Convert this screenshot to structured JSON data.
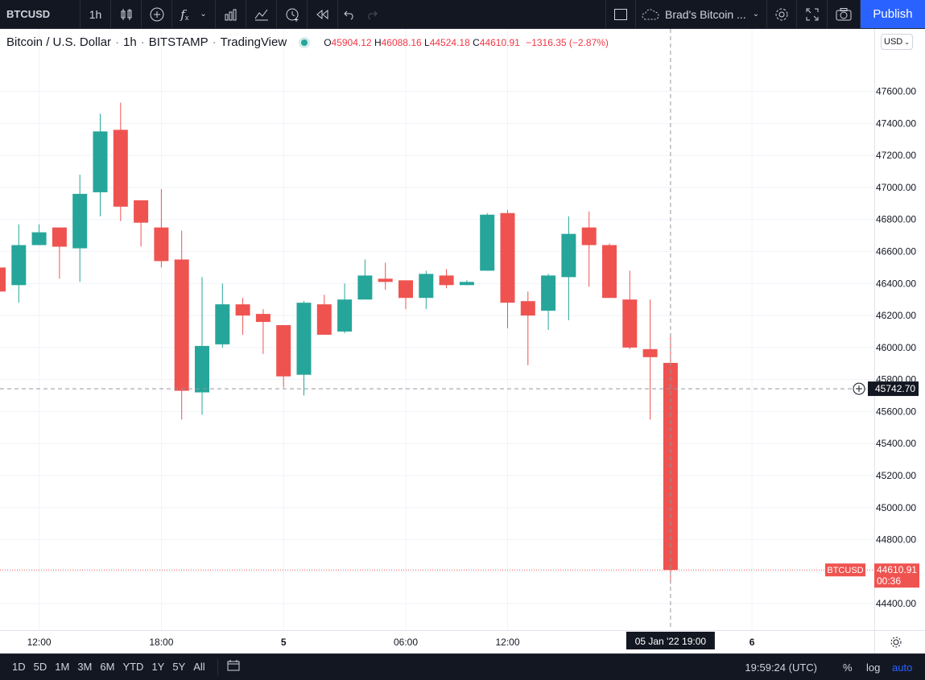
{
  "toolbar": {
    "symbol": "BTCUSD",
    "interval": "1h",
    "layout_name": "Brad's Bitcoin ...",
    "publish_label": "Publish",
    "icons": [
      "candle-style-icon",
      "add-compare-icon",
      "indicators-icon",
      "chevron-down-icon",
      "financials-icon",
      "templates-icon",
      "alert-icon",
      "replay-icon",
      "undo-icon",
      "redo-icon",
      "layout-square-icon",
      "cloud-icon",
      "settings-icon",
      "fullscreen-icon",
      "camera-icon"
    ]
  },
  "legend": {
    "title": "Bitcoin / U.S. Dollar",
    "interval": "1h",
    "exchange": "BITSTAMP",
    "source": "TradingView",
    "o_label": "O",
    "o": "45904.12",
    "h_label": "H",
    "h": "46088.16",
    "l_label": "L",
    "l": "44524.18",
    "c_label": "C",
    "c": "44610.91",
    "change": "−1316.35 (−2.87%)"
  },
  "currency_button": "USD",
  "colors": {
    "up": "#26a69a",
    "down": "#ef5350",
    "crosshair_label_bg": "#131722",
    "price_line": "#ef5350"
  },
  "chart_data": {
    "type": "candlestick",
    "symbol": "BTCUSD",
    "y_ticks": [
      44400,
      44600,
      44800,
      45000,
      45200,
      45400,
      45600,
      45800,
      46000,
      46200,
      46400,
      46600,
      46800,
      47000,
      47200,
      47400,
      47600
    ],
    "y_tick_labels": [
      "44400.00",
      "44600.00",
      "44800.00",
      "45000.00",
      "45200.00",
      "45400.00",
      "45600.00",
      "45800.00",
      "46000.00",
      "46200.00",
      "46400.00",
      "46600.00",
      "46800.00",
      "47000.00",
      "47200.00",
      "47400.00",
      "47600.00"
    ],
    "ylim": [
      44235,
      47990
    ],
    "x_labels": [
      {
        "label": "12:00",
        "index": 2
      },
      {
        "label": "18:00",
        "index": 8
      },
      {
        "label": "5",
        "index": 14
      },
      {
        "label": "06:00",
        "index": 20
      },
      {
        "label": "12:00",
        "index": 25
      },
      {
        "label": "6",
        "index": 37
      }
    ],
    "candles": [
      {
        "o": 46500,
        "h": 46530,
        "l": 46330,
        "c": 46350
      },
      {
        "o": 46390,
        "h": 46770,
        "l": 46280,
        "c": 46640
      },
      {
        "o": 46640,
        "h": 46770,
        "l": 46640,
        "c": 46720
      },
      {
        "o": 46750,
        "h": 46750,
        "l": 46430,
        "c": 46630
      },
      {
        "o": 46620,
        "h": 47080,
        "l": 46410,
        "c": 46960
      },
      {
        "o": 46970,
        "h": 47460,
        "l": 46820,
        "c": 47350
      },
      {
        "o": 47360,
        "h": 47530,
        "l": 46790,
        "c": 46880
      },
      {
        "o": 46920,
        "h": 46920,
        "l": 46630,
        "c": 46780
      },
      {
        "o": 46750,
        "h": 46990,
        "l": 46500,
        "c": 46540
      },
      {
        "o": 46550,
        "h": 46730,
        "l": 45550,
        "c": 45730
      },
      {
        "o": 45720,
        "h": 46440,
        "l": 45580,
        "c": 46010
      },
      {
        "o": 46020,
        "h": 46400,
        "l": 46000,
        "c": 46270
      },
      {
        "o": 46270,
        "h": 46310,
        "l": 46080,
        "c": 46200
      },
      {
        "o": 46210,
        "h": 46240,
        "l": 45960,
        "c": 46160
      },
      {
        "o": 46140,
        "h": 46140,
        "l": 45750,
        "c": 45820
      },
      {
        "o": 45830,
        "h": 46290,
        "l": 45700,
        "c": 46280
      },
      {
        "o": 46270,
        "h": 46330,
        "l": 46080,
        "c": 46080
      },
      {
        "o": 46100,
        "h": 46400,
        "l": 46090,
        "c": 46300
      },
      {
        "o": 46300,
        "h": 46550,
        "l": 46300,
        "c": 46450
      },
      {
        "o": 46430,
        "h": 46530,
        "l": 46360,
        "c": 46410
      },
      {
        "o": 46420,
        "h": 46420,
        "l": 46240,
        "c": 46310
      },
      {
        "o": 46310,
        "h": 46480,
        "l": 46240,
        "c": 46460
      },
      {
        "o": 46450,
        "h": 46490,
        "l": 46370,
        "c": 46390
      },
      {
        "o": 46390,
        "h": 46420,
        "l": 46390,
        "c": 46410
      },
      {
        "o": 46480,
        "h": 46840,
        "l": 46480,
        "c": 46830
      },
      {
        "o": 46840,
        "h": 46860,
        "l": 46120,
        "c": 46280
      },
      {
        "o": 46290,
        "h": 46350,
        "l": 45890,
        "c": 46200
      },
      {
        "o": 46230,
        "h": 46460,
        "l": 46110,
        "c": 46450
      },
      {
        "o": 46440,
        "h": 46820,
        "l": 46170,
        "c": 46710
      },
      {
        "o": 46750,
        "h": 46850,
        "l": 46380,
        "c": 46640
      },
      {
        "o": 46640,
        "h": 46650,
        "l": 46310,
        "c": 46310
      },
      {
        "o": 46300,
        "h": 46480,
        "l": 45990,
        "c": 46000
      },
      {
        "o": 45990,
        "h": 46300,
        "l": 45550,
        "c": 45940
      },
      {
        "o": 45904.12,
        "h": 46088.16,
        "l": 44524.18,
        "c": 44610.91
      }
    ],
    "crosshair": {
      "price_label": "45742.70",
      "time_label": "05 Jan '22   19:00"
    },
    "last_price": {
      "symbol_label": "BTCUSD",
      "price": "44610.91",
      "countdown": "00:36"
    },
    "grid": true
  },
  "bottom": {
    "ranges": [
      "1D",
      "5D",
      "1M",
      "3M",
      "6M",
      "YTD",
      "1Y",
      "5Y",
      "All"
    ],
    "clock": "19:59:24 (UTC)",
    "percent": "%",
    "log": "log",
    "auto": "auto"
  }
}
